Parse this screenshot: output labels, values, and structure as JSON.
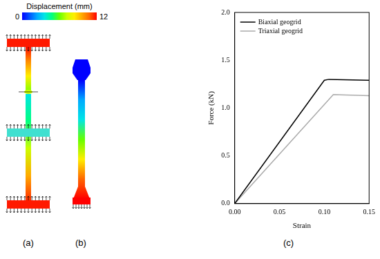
{
  "chart_data": {
    "type": "line",
    "x_label": "Strain",
    "y_label": "Force (kN)",
    "xlim": [
      0,
      0.15
    ],
    "xticks": [
      {
        "value": 0,
        "label": "0.00"
      },
      0.05,
      {
        "value": 0.1,
        "label": "0.10"
      },
      0.15
    ],
    "ylim": [
      0,
      2
    ],
    "yticks": [
      {
        "value": 0,
        "label": "0.0"
      },
      0.5,
      {
        "value": 1,
        "label": "1.0"
      },
      1.5,
      {
        "value": 2,
        "label": "2.0"
      }
    ],
    "grid": false,
    "legend": "upper left",
    "series": [
      {
        "name": "Biaxial geogrid",
        "color": "#000000",
        "x": [
          0,
          0.1,
          0.105,
          0.15
        ],
        "values": [
          0,
          1.29,
          1.3,
          1.29
        ]
      },
      {
        "name": "Triaxial geogrid",
        "color": "#aaaaaa",
        "x": [
          0,
          0.11,
          0.15
        ],
        "values": [
          0,
          1.14,
          1.13
        ]
      }
    ]
  },
  "colorbar": {
    "title": "Displacement (mm)",
    "range": [
      0,
      12
    ],
    "ticks": [
      0,
      12
    ]
  },
  "panel_labels": [
    "(a)",
    "(b)",
    "(c)"
  ]
}
